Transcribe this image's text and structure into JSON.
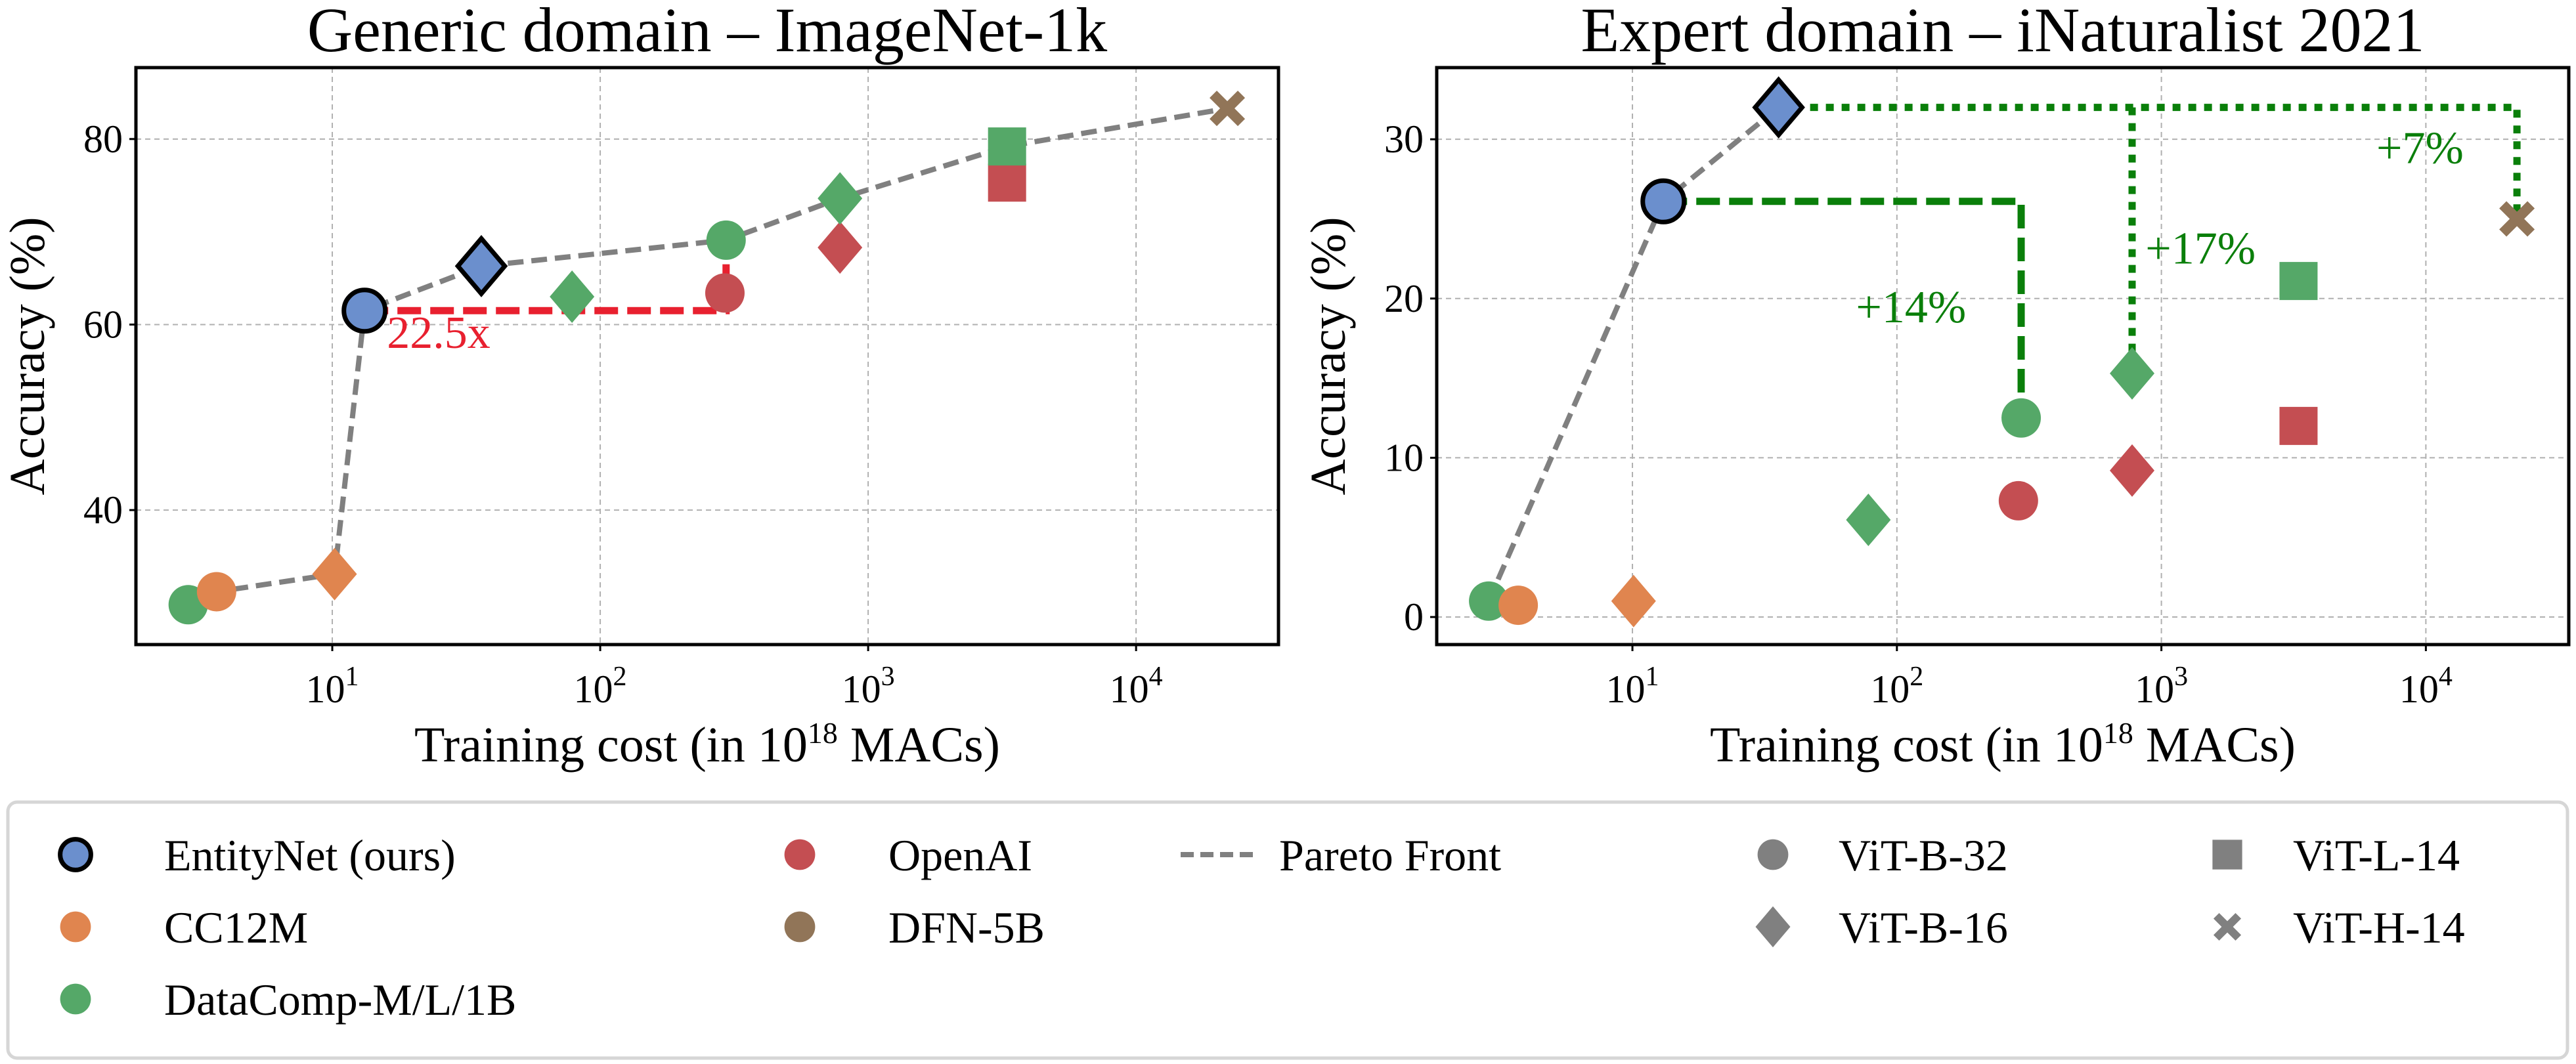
{
  "colors": {
    "EntityNet (ours)": "#6b8fcd",
    "CC12M": "#e0854f",
    "DataComp-M/L/1B": "#55a868",
    "OpenAI": "#c44e52",
    "DFN-5B": "#917558",
    "architecture_marker": "#808080",
    "pareto": "#808080",
    "annotation_red": "#e8202f",
    "annotation_green": "#0a7f0a"
  },
  "markers": {
    "ViT-B-32": "circle",
    "ViT-B-16": "diamond",
    "ViT-L-14": "square",
    "ViT-H-14": "x"
  },
  "legend": {
    "datasets": [
      "EntityNet (ours)",
      "CC12M",
      "DataComp-M/L/1B",
      "OpenAI",
      "DFN-5B"
    ],
    "pareto_label": "Pareto Front",
    "architectures": [
      "ViT-B-32",
      "ViT-B-16",
      "ViT-L-14",
      "ViT-H-14"
    ]
  },
  "chart_data": [
    {
      "type": "scatter",
      "title": "Generic domain – ImageNet-1k",
      "xlabel": "Training cost (in 10^18 MACs)",
      "xlabel_parts": {
        "before": "Training cost (in 10",
        "sup": "18",
        "after": " MACs)"
      },
      "ylabel": "Accuracy (%)",
      "xscale": "log",
      "xlim": [
        1.85,
        34000
      ],
      "ylim": [
        25.5,
        87.7
      ],
      "xticks": [
        {
          "base": "10",
          "exp": "1",
          "value": 10
        },
        {
          "base": "10",
          "exp": "2",
          "value": 100
        },
        {
          "base": "10",
          "exp": "3",
          "value": 1000
        },
        {
          "base": "10",
          "exp": "4",
          "value": 10000
        }
      ],
      "yticks": [
        40,
        60,
        80
      ],
      "grid": true,
      "points": [
        {
          "dataset": "DataComp-M/L/1B",
          "arch": "ViT-B-32",
          "x": 2.9,
          "y": 29.8
        },
        {
          "dataset": "CC12M",
          "arch": "ViT-B-32",
          "x": 3.7,
          "y": 31.2
        },
        {
          "dataset": "CC12M",
          "arch": "ViT-B-16",
          "x": 10.2,
          "y": 33.1
        },
        {
          "dataset": "DataComp-M/L/1B",
          "arch": "ViT-B-16",
          "x": 78.5,
          "y": 63.0
        },
        {
          "dataset": "OpenAI",
          "arch": "ViT-B-32",
          "x": 292,
          "y": 63.4
        },
        {
          "dataset": "DataComp-M/L/1B",
          "arch": "ViT-B-32",
          "x": 295,
          "y": 69.1
        },
        {
          "dataset": "OpenAI",
          "arch": "ViT-B-16",
          "x": 785,
          "y": 68.3
        },
        {
          "dataset": "DataComp-M/L/1B",
          "arch": "ViT-B-16",
          "x": 785,
          "y": 73.6
        },
        {
          "dataset": "OpenAI",
          "arch": "ViT-L-14",
          "x": 3300,
          "y": 75.3
        },
        {
          "dataset": "DataComp-M/L/1B",
          "arch": "ViT-L-14",
          "x": 3300,
          "y": 79.2
        },
        {
          "dataset": "DFN-5B",
          "arch": "ViT-H-14",
          "x": 21900,
          "y": 83.3
        },
        {
          "dataset": "EntityNet (ours)",
          "arch": "ViT-B-32",
          "x": 13.2,
          "y": 61.5
        },
        {
          "dataset": "EntityNet (ours)",
          "arch": "ViT-B-16",
          "x": 36,
          "y": 66.3
        }
      ],
      "pareto": [
        [
          2.9,
          29.8
        ],
        [
          3.7,
          31.2
        ],
        [
          10.2,
          33.1
        ],
        [
          13.2,
          61.5
        ],
        [
          36,
          66.3
        ],
        [
          295,
          69.1
        ],
        [
          785,
          73.6
        ],
        [
          3300,
          79.2
        ],
        [
          21900,
          83.3
        ]
      ],
      "annotations": [
        {
          "text": "22.5x",
          "color": "red",
          "style": "dashed",
          "path": [
            [
              13.2,
              61.5
            ],
            [
              295,
              61.5
            ],
            [
              295,
              66.5
            ]
          ],
          "label_at": [
            16,
            57.5
          ]
        }
      ]
    },
    {
      "type": "scatter",
      "title": "Expert domain – iNaturalist 2021",
      "xlabel": "Training cost (in 10^18 MACs)",
      "xlabel_parts": {
        "before": "Training cost (in 10",
        "sup": "18",
        "after": " MACs)"
      },
      "ylabel": "Accuracy (%)",
      "xscale": "log",
      "xlim": [
        1.82,
        34700
      ],
      "ylim": [
        -1.73,
        34.5
      ],
      "xticks": [
        {
          "base": "10",
          "exp": "1",
          "value": 10
        },
        {
          "base": "10",
          "exp": "2",
          "value": 100
        },
        {
          "base": "10",
          "exp": "3",
          "value": 1000
        },
        {
          "base": "10",
          "exp": "4",
          "value": 10000
        }
      ],
      "yticks": [
        0,
        10,
        20,
        30
      ],
      "grid": true,
      "points": [
        {
          "dataset": "DataComp-M/L/1B",
          "arch": "ViT-B-32",
          "x": 2.86,
          "y": 1.0
        },
        {
          "dataset": "CC12M",
          "arch": "ViT-B-32",
          "x": 3.7,
          "y": 0.74
        },
        {
          "dataset": "CC12M",
          "arch": "ViT-B-16",
          "x": 10.1,
          "y": 1.0
        },
        {
          "dataset": "DataComp-M/L/1B",
          "arch": "ViT-B-16",
          "x": 78,
          "y": 6.1
        },
        {
          "dataset": "OpenAI",
          "arch": "ViT-B-32",
          "x": 288,
          "y": 7.3
        },
        {
          "dataset": "DataComp-M/L/1B",
          "arch": "ViT-B-32",
          "x": 295,
          "y": 12.5
        },
        {
          "dataset": "OpenAI",
          "arch": "ViT-B-16",
          "x": 775,
          "y": 9.2
        },
        {
          "dataset": "DataComp-M/L/1B",
          "arch": "ViT-B-16",
          "x": 775,
          "y": 15.3
        },
        {
          "dataset": "OpenAI",
          "arch": "ViT-L-14",
          "x": 3300,
          "y": 12.0
        },
        {
          "dataset": "DataComp-M/L/1B",
          "arch": "ViT-L-14",
          "x": 3300,
          "y": 21.1
        },
        {
          "dataset": "DFN-5B",
          "arch": "ViT-H-14",
          "x": 22100,
          "y": 25.0
        },
        {
          "dataset": "EntityNet (ours)",
          "arch": "ViT-B-32",
          "x": 13.1,
          "y": 26.1
        },
        {
          "dataset": "EntityNet (ours)",
          "arch": "ViT-B-16",
          "x": 35.7,
          "y": 32.0
        }
      ],
      "pareto": [
        [
          2.86,
          1.0
        ],
        [
          13.1,
          26.1
        ],
        [
          35.7,
          32.0
        ]
      ],
      "annotations": [
        {
          "text": "+14%",
          "color": "green",
          "style": "dashed",
          "path": [
            [
              13.1,
              26.1
            ],
            [
              295,
              26.1
            ],
            [
              295,
              12.5
            ]
          ],
          "label_at": [
            70,
            18.5
          ]
        },
        {
          "text": "+17%",
          "color": "green",
          "style": "dotted",
          "path": [
            [
              775,
              32.0
            ],
            [
              775,
              15.3
            ]
          ],
          "label_at": [
            870,
            22.2
          ]
        },
        {
          "text": "+7%",
          "color": "green",
          "style": "dotted",
          "path": [
            [
              35.7,
              32.0
            ],
            [
              22100,
              32.0
            ],
            [
              22100,
              25.0
            ]
          ],
          "label_at": [
            6500,
            28.5
          ]
        }
      ]
    }
  ]
}
